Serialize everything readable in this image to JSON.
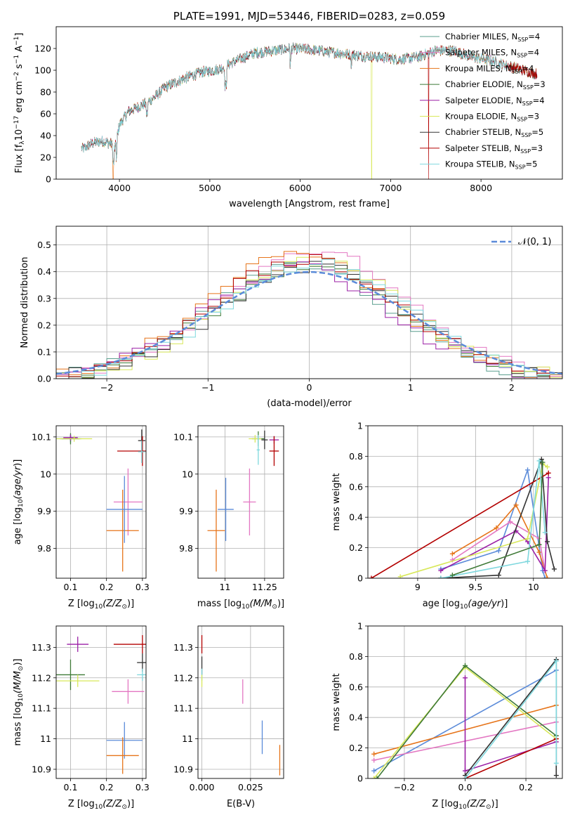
{
  "chart_data": [
    {
      "id": "spectrum",
      "type": "line",
      "title": "PLATE=1991, MJD=53446, FIBERID=0283, z=0.059",
      "xlabel": "wavelength [Angstrom, rest frame]",
      "ylabel_parts": [
        "Flux [f",
        "λ",
        "10",
        "−17",
        " erg cm",
        "−2",
        " s",
        "−1",
        " A",
        "−1",
        "]"
      ],
      "xlim": [
        3300,
        8900
      ],
      "ylim": [
        0,
        140
      ],
      "xticks": [
        4000,
        5000,
        6000,
        7000,
        8000
      ],
      "yticks": [
        0,
        20,
        40,
        60,
        80,
        100,
        120
      ],
      "grid": false,
      "legend_position": "top-right",
      "series": [
        {
          "name": "Chabrier MILES, N",
          "nssp": "=4",
          "color": "#5a9e8e",
          "lw": 0.6
        },
        {
          "name": "Salpeter MILES, N",
          "nssp": "=4",
          "color": "#e377c2",
          "lw": 0.6
        },
        {
          "name": "Kroupa MILES, N",
          "nssp": "=4",
          "color": "#e6741a",
          "lw": 0.6
        },
        {
          "name": "Chabrier ELODIE, N",
          "nssp": "=3",
          "color": "#3f7a37",
          "lw": 0.6
        },
        {
          "name": "Salpeter ELODIE, N",
          "nssp": "=4",
          "color": "#9b1fa6",
          "lw": 0.6
        },
        {
          "name": "Kroupa ELODIE, N",
          "nssp": "=3",
          "color": "#d8e85a",
          "lw": 0.6
        },
        {
          "name": "Chabrier STELIB, N",
          "nssp": "=5",
          "color": "#333333",
          "lw": 0.6
        },
        {
          "name": "Salpeter STELIB, N",
          "nssp": "=3",
          "color": "#b30000",
          "lw": 0.6
        },
        {
          "name": "Kroupa STELIB, N",
          "nssp": "=5",
          "color": "#7fd8de",
          "lw": 0.6
        }
      ],
      "continuum": {
        "x": [
          3600,
          3700,
          3800,
          3900,
          3950,
          4000,
          4100,
          4200,
          4300,
          4400,
          4500,
          4700,
          4900,
          5100,
          5300,
          5500,
          5700,
          5900,
          6100,
          6300,
          6500,
          6700,
          6900,
          7100,
          7300,
          7500,
          7700,
          7900,
          8100,
          8300,
          8600
        ],
        "y": [
          28,
          33,
          35,
          33,
          28,
          50,
          62,
          66,
          70,
          76,
          84,
          92,
          98,
          101,
          109,
          116,
          118,
          120,
          119,
          117,
          115,
          113,
          112,
          110,
          112,
          118,
          118,
          112,
          109,
          104,
          97
        ]
      },
      "drops": [
        {
          "series": "Kroupa MILES",
          "x": 3930
        },
        {
          "series": "Kroupa ELODIE",
          "x": 6790
        },
        {
          "series": "Salpeter STELIB",
          "x": 7420
        }
      ]
    },
    {
      "id": "residuals",
      "type": "histogram",
      "xlabel": "(data-model)/error",
      "ylabel": "Normed distribution",
      "xlim": [
        -2.5,
        2.5
      ],
      "ylim": [
        0,
        0.57
      ],
      "xticks": [
        -2,
        -1,
        0,
        1,
        2
      ],
      "xticklabels": [
        "−2",
        "−1",
        "0",
        "1",
        "2"
      ],
      "yticks": [
        0.0,
        0.1,
        0.2,
        0.3,
        0.4,
        0.5
      ],
      "yticklabels": [
        "0.0",
        "0.1",
        "0.2",
        "0.3",
        "0.4",
        "0.5"
      ],
      "grid": true,
      "legend": "𝒩(0, 1)",
      "legend_position": "top-right",
      "normal_curve": {
        "mu": 0,
        "sigma": 1,
        "color": "#5b8bd9"
      },
      "bin_width": 0.125
    },
    {
      "id": "age_vs_Z",
      "type": "errorbar",
      "xlabel": "Z [log",
      "xlabel_sub": "10",
      "xlabel_tail": "(Z/Z",
      "ylabel": "age  [log",
      "xlim": [
        0.06,
        0.31
      ],
      "ylim": [
        9.72,
        10.13
      ],
      "xticks": [
        0.1,
        0.2,
        0.3
      ],
      "yticks": [
        9.8,
        9.9,
        10.0,
        10.1
      ],
      "points": [
        {
          "color": "#5a9e8e",
          "x": 0.1,
          "xerr": 0.03,
          "y": 10.095,
          "yerr": 0.01
        },
        {
          "color": "#e377c2",
          "x": 0.26,
          "xerr": 0.04,
          "y": 9.925,
          "yerr": 0.09
        },
        {
          "color": "#e6741a",
          "x": 0.245,
          "xerr": 0.045,
          "y": 9.848,
          "yerr": 0.11
        },
        {
          "color": "#3f7a37",
          "x": 0.1,
          "xerr": 0.025,
          "y": 10.095,
          "yerr": 0.015
        },
        {
          "color": "#9b1fa6",
          "x": 0.1,
          "xerr": 0.02,
          "y": 10.098,
          "yerr": 0.008
        },
        {
          "color": "#d8e85a",
          "x": 0.11,
          "xerr": 0.05,
          "y": 10.095,
          "yerr": 0.008
        },
        {
          "color": "#333333",
          "x": 0.298,
          "xerr": 0.01,
          "y": 10.09,
          "yerr": 0.03
        },
        {
          "color": "#b30000",
          "x": 0.3,
          "xerr": 0.07,
          "y": 10.062,
          "yerr": 0.04
        },
        {
          "color": "#7fd8de",
          "x": 0.298,
          "xerr": 0.01,
          "y": 10.06,
          "yerr": 0.03
        },
        {
          "color": "#5b8bd9",
          "x": 0.25,
          "xerr": 0.05,
          "y": 9.905,
          "yerr": 0.09
        }
      ]
    },
    {
      "id": "age_vs_mass",
      "type": "errorbar",
      "xlabel": "mass [log",
      "ylabel": "",
      "xlim": [
        10.83,
        11.37
      ],
      "ylim": [
        9.72,
        10.13
      ],
      "xticks": [
        11.0,
        11.25
      ],
      "yticks": [
        9.8,
        9.9,
        10.0,
        10.1
      ],
      "points": [
        {
          "color": "#5b8bd9",
          "x": 11.005,
          "xerr": 0.05,
          "y": 9.905,
          "yerr": 0.085
        },
        {
          "color": "#e377c2",
          "x": 11.155,
          "xerr": 0.04,
          "y": 9.925,
          "yerr": 0.09
        },
        {
          "color": "#e6741a",
          "x": 10.945,
          "xerr": 0.055,
          "y": 9.848,
          "yerr": 0.11
        },
        {
          "color": "#3f7a37",
          "x": 11.21,
          "xerr": 0.04,
          "y": 10.095,
          "yerr": 0.02
        },
        {
          "color": "#9b1fa6",
          "x": 11.31,
          "xerr": 0.03,
          "y": 10.092,
          "yerr": 0.01
        },
        {
          "color": "#d8e85a",
          "x": 11.19,
          "xerr": 0.04,
          "y": 10.095,
          "yerr": 0.01
        },
        {
          "color": "#333333",
          "x": 11.25,
          "xerr": 0.02,
          "y": 10.092,
          "yerr": 0.025
        },
        {
          "color": "#b30000",
          "x": 11.31,
          "xerr": 0.03,
          "y": 10.062,
          "yerr": 0.04
        },
        {
          "color": "#7fd8de",
          "x": 11.21,
          "xerr": 0.01,
          "y": 10.065,
          "yerr": 0.04
        }
      ]
    },
    {
      "id": "weight_vs_age",
      "type": "line",
      "xlabel": "age  [log",
      "ylabel": "mass weight",
      "xlim": [
        8.57,
        10.25
      ],
      "ylim": [
        0,
        1.0
      ],
      "xticks": [
        9.0,
        9.5,
        10.0
      ],
      "yticks": [
        0.0,
        0.2,
        0.4,
        0.6,
        0.8,
        1.0
      ],
      "series": [
        {
          "color": "#5b8bd9",
          "x": [
            9.2,
            9.7,
            9.95,
            10.08,
            10.1
          ],
          "y": [
            0.06,
            0.18,
            0.71,
            0.05,
            0.0
          ]
        },
        {
          "color": "#e6741a",
          "x": [
            9.3,
            9.68,
            9.85,
            10.05,
            10.12
          ],
          "y": [
            0.16,
            0.33,
            0.48,
            0.17,
            0.0
          ]
        },
        {
          "color": "#e377c2",
          "x": [
            9.3,
            9.8,
            10.05,
            10.1
          ],
          "y": [
            0.12,
            0.37,
            0.26,
            0.05
          ]
        },
        {
          "color": "#9b1fa6",
          "x": [
            9.2,
            9.85,
            9.95,
            10.1,
            10.13
          ],
          "y": [
            0.05,
            0.31,
            0.24,
            0.05,
            0.66
          ]
        },
        {
          "color": "#d8e85a",
          "x": [
            8.85,
            9.95,
            10.08,
            10.12
          ],
          "y": [
            0.01,
            0.26,
            0.75,
            0.73
          ]
        },
        {
          "color": "#333333",
          "x": [
            9.2,
            9.7,
            10.07,
            10.12,
            10.18
          ],
          "y": [
            0.0,
            0.02,
            0.78,
            0.24,
            0.06
          ]
        },
        {
          "color": "#b30000",
          "x": [
            8.6,
            10.13
          ],
          "y": [
            0.0,
            0.69
          ]
        },
        {
          "color": "#7fd8de",
          "x": [
            9.2,
            9.95,
            10.05,
            10.1
          ],
          "y": [
            0.0,
            0.11,
            0.77,
            0.3
          ]
        },
        {
          "color": "#3f7a37",
          "x": [
            9.3,
            10.05,
            10.08
          ],
          "y": [
            0.02,
            0.22,
            0.76
          ]
        }
      ]
    },
    {
      "id": "mass_vs_Z",
      "type": "errorbar",
      "xlabel": "Z [log",
      "ylabel": "mass [log",
      "xlim": [
        0.06,
        0.31
      ],
      "ylim": [
        10.87,
        11.37
      ],
      "xticks": [
        0.1,
        0.2,
        0.3
      ],
      "yticks": [
        10.9,
        11.0,
        11.1,
        11.2,
        11.3
      ],
      "points": [
        {
          "color": "#9b1fa6",
          "x": 0.12,
          "xerr": 0.03,
          "y": 11.31,
          "yerr": 0.025
        },
        {
          "color": "#3f7a37",
          "x": 0.1,
          "xerr": 0.04,
          "y": 11.21,
          "yerr": 0.05
        },
        {
          "color": "#d8e85a",
          "x": 0.12,
          "xerr": 0.06,
          "y": 11.19,
          "yerr": 0.02
        },
        {
          "color": "#b30000",
          "x": 0.3,
          "xerr": 0.08,
          "y": 11.31,
          "yerr": 0.03
        },
        {
          "color": "#333333",
          "x": 0.3,
          "xerr": 0.015,
          "y": 11.25,
          "yerr": 0.03
        },
        {
          "color": "#7fd8de",
          "x": 0.3,
          "xerr": 0.015,
          "y": 11.21,
          "yerr": 0.02
        },
        {
          "color": "#e377c2",
          "x": 0.26,
          "xerr": 0.045,
          "y": 11.155,
          "yerr": 0.04
        },
        {
          "color": "#5b8bd9",
          "x": 0.25,
          "xerr": 0.05,
          "y": 10.995,
          "yerr": 0.06
        },
        {
          "color": "#e6741a",
          "x": 0.245,
          "xerr": 0.045,
          "y": 10.945,
          "yerr": 0.06
        }
      ]
    },
    {
      "id": "mass_vs_ebv",
      "type": "errorbar",
      "xlabel": "E(B-V)",
      "ylabel": "",
      "xlim": [
        -0.002,
        0.042
      ],
      "ylim": [
        10.87,
        11.37
      ],
      "xticks": [
        0.0,
        0.025
      ],
      "xticklabels": [
        "0.000",
        "0.025"
      ],
      "yticks": [
        10.9,
        11.0,
        11.1,
        11.2,
        11.3
      ],
      "points": [
        {
          "color": "#b30000",
          "x": 0.0,
          "xerr": 0,
          "y": 11.31,
          "yerr": 0.03
        },
        {
          "color": "#333333",
          "x": 0.0,
          "xerr": 0,
          "y": 11.24,
          "yerr": 0.03
        },
        {
          "color": "#7fd8de",
          "x": 0.0,
          "xerr": 0,
          "y": 11.21,
          "yerr": 0.02
        },
        {
          "color": "#d8e85a",
          "x": 0.0,
          "xerr": 0,
          "y": 11.19,
          "yerr": 0.02
        },
        {
          "color": "#e377c2",
          "x": 0.021,
          "xerr": 0,
          "y": 11.155,
          "yerr": 0.04
        },
        {
          "color": "#5b8bd9",
          "x": 0.031,
          "xerr": 0,
          "y": 11.005,
          "yerr": 0.055
        },
        {
          "color": "#e6741a",
          "x": 0.04,
          "xerr": 0,
          "y": 10.93,
          "yerr": 0.05
        }
      ]
    },
    {
      "id": "weight_vs_Z",
      "type": "line",
      "xlabel": "Z [log",
      "ylabel": "mass weight",
      "xlim": [
        -0.32,
        0.32
      ],
      "ylim": [
        0,
        1.0
      ],
      "xticks": [
        -0.2,
        0.0,
        0.2
      ],
      "xticklabels": [
        "−0.2",
        "0.0",
        "0.2"
      ],
      "yticks": [
        0.0,
        0.2,
        0.4,
        0.6,
        0.8,
        1.0
      ],
      "series": [
        {
          "color": "#5b8bd9",
          "x": [
            -0.3,
            0.3
          ],
          "y": [
            0.05,
            0.71
          ]
        },
        {
          "color": "#e6741a",
          "x": [
            -0.3,
            0.3
          ],
          "y": [
            0.16,
            0.48
          ]
        },
        {
          "color": "#e377c2",
          "x": [
            -0.3,
            0.3
          ],
          "y": [
            0.12,
            0.37
          ]
        },
        {
          "color": "#9b1fa6",
          "x": [
            0.0,
            0.0,
            0.3
          ],
          "y": [
            0.66,
            0.05,
            0.24
          ]
        },
        {
          "color": "#d8e85a",
          "x": [
            -0.3,
            0.0,
            0.3
          ],
          "y": [
            0.0,
            0.73,
            0.26
          ]
        },
        {
          "color": "#3f7a37",
          "x": [
            -0.29,
            0.0,
            0.3
          ],
          "y": [
            0.0,
            0.74,
            0.28
          ]
        },
        {
          "color": "#333333",
          "x": [
            0.0,
            0.3,
            0.3
          ],
          "y": [
            0.02,
            0.78,
            0.02
          ]
        },
        {
          "color": "#b30000",
          "x": [
            0.0,
            0.3
          ],
          "y": [
            0.0,
            0.26
          ]
        },
        {
          "color": "#7fd8de",
          "x": [
            0.0,
            0.3,
            0.3
          ],
          "y": [
            0.0,
            0.77,
            0.1
          ]
        }
      ]
    }
  ]
}
